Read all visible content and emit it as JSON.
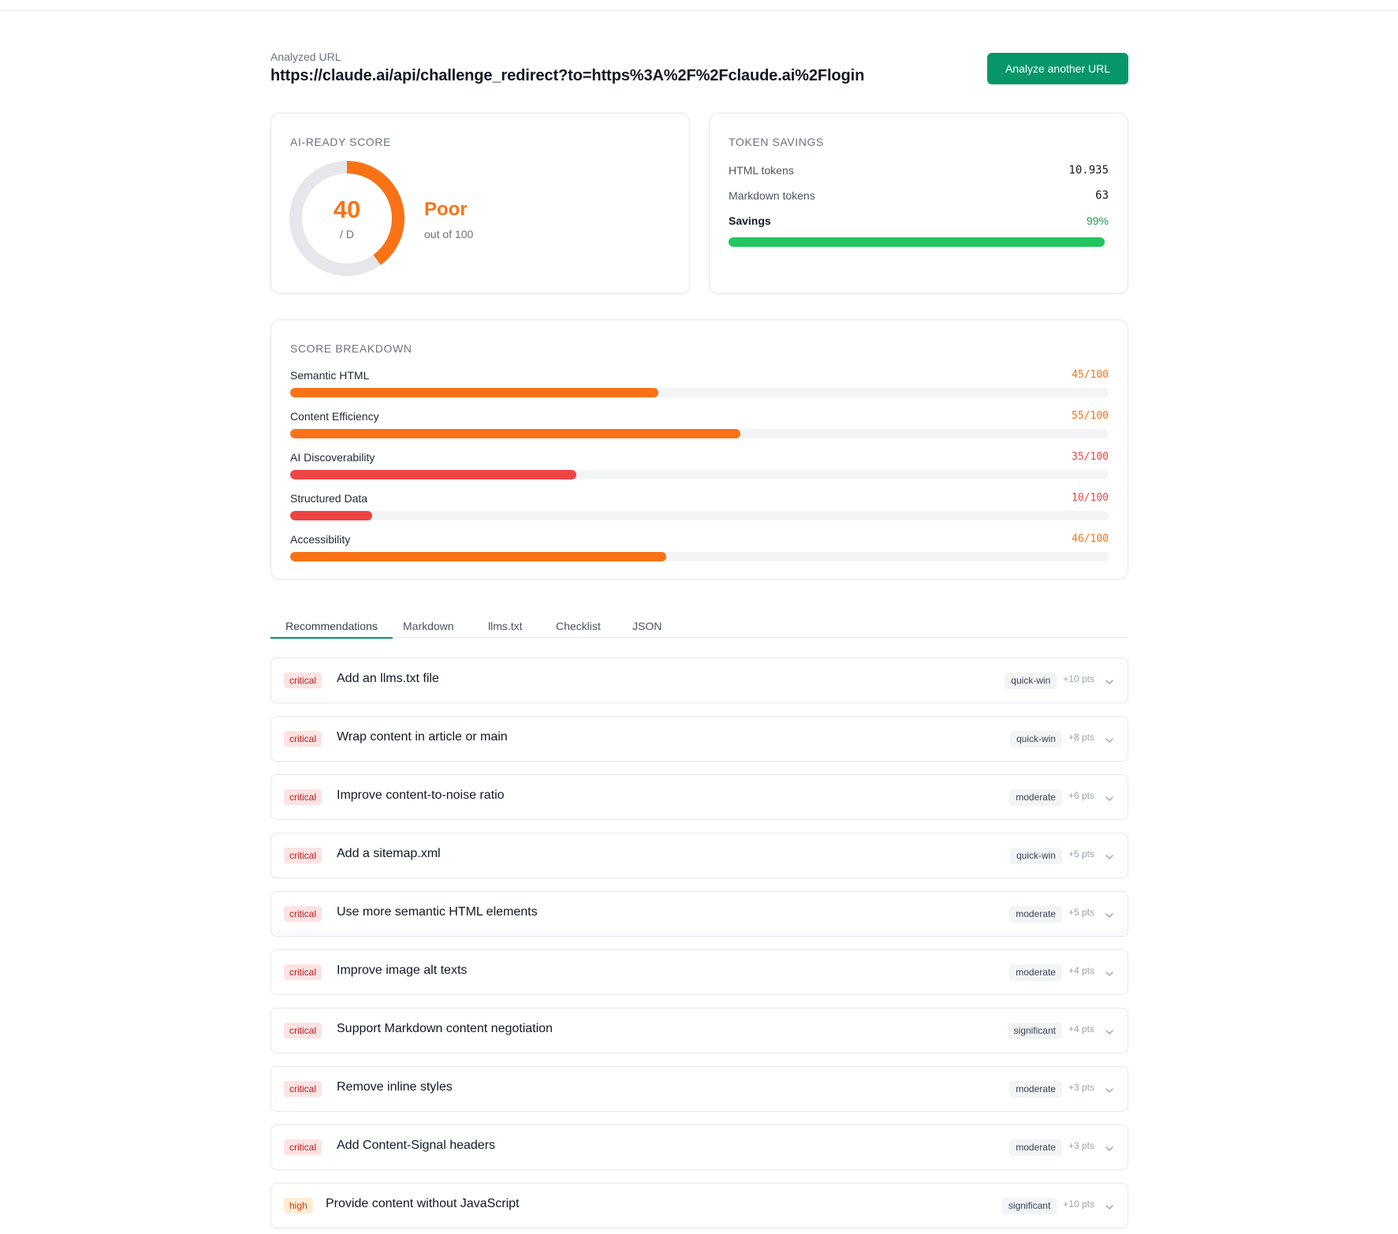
{
  "header": {
    "label": "Analyzed URL",
    "url": "https://claude.ai/api/challenge_redirect?to=https%3A%2F%2Fclaude.ai%2Flogin",
    "analyze_button": "Analyze another URL"
  },
  "score_card": {
    "title": "AI-READY SCORE",
    "score": "40",
    "grade": "/ D",
    "rating": "Poor",
    "subtitle": "out of 100",
    "score_value": 40,
    "max": 100,
    "color": "#f97316"
  },
  "token_savings": {
    "title": "TOKEN SAVINGS",
    "rows": [
      {
        "label": "HTML tokens",
        "value": "10.935"
      },
      {
        "label": "Markdown tokens",
        "value": "63"
      },
      {
        "label": "Savings",
        "value": "99%"
      }
    ],
    "savings_percent": 99,
    "bar_color": "#22c55e"
  },
  "breakdown": {
    "title": "SCORE BREAKDOWN",
    "items": [
      {
        "name": "Semantic HTML",
        "score": "45/100",
        "value": 45,
        "color": "#f97316"
      },
      {
        "name": "Content Efficiency",
        "score": "55/100",
        "value": 55,
        "color": "#f97316"
      },
      {
        "name": "AI Discoverability",
        "score": "35/100",
        "value": 35,
        "color": "#ef4444"
      },
      {
        "name": "Structured Data",
        "score": "10/100",
        "value": 10,
        "color": "#ef4444"
      },
      {
        "name": "Accessibility",
        "score": "46/100",
        "value": 46,
        "color": "#f97316"
      }
    ]
  },
  "tabs": [
    {
      "label": "Recommendations",
      "active": true
    },
    {
      "label": "Markdown"
    },
    {
      "label": "llms.txt"
    },
    {
      "label": "Checklist"
    },
    {
      "label": "JSON"
    }
  ],
  "recommendations": [
    {
      "priority": "critical",
      "title": "Add an llms.txt file",
      "effort": "quick-win",
      "points": "+10 pts"
    },
    {
      "priority": "critical",
      "title": "Wrap content in article or main",
      "effort": "quick-win",
      "points": "+8 pts"
    },
    {
      "priority": "critical",
      "title": "Improve content-to-noise ratio",
      "effort": "moderate",
      "points": "+6 pts"
    },
    {
      "priority": "critical",
      "title": "Add a sitemap.xml",
      "effort": "quick-win",
      "points": "+5 pts"
    },
    {
      "priority": "critical",
      "title": "Use more semantic HTML elements",
      "effort": "moderate",
      "points": "+5 pts"
    },
    {
      "priority": "critical",
      "title": "Improve image alt texts",
      "effort": "moderate",
      "points": "+4 pts"
    },
    {
      "priority": "critical",
      "title": "Support Markdown content negotiation",
      "effort": "significant",
      "points": "+4 pts"
    },
    {
      "priority": "critical",
      "title": "Remove inline styles",
      "effort": "moderate",
      "points": "+3 pts"
    },
    {
      "priority": "critical",
      "title": "Add Content-Signal headers",
      "effort": "moderate",
      "points": "+3 pts"
    },
    {
      "priority": "high",
      "title": "Provide content without JavaScript",
      "effort": "significant",
      "points": "+10 pts"
    }
  ],
  "colors": {
    "accent": "#079669",
    "orange": "#f97316",
    "red": "#ef4444",
    "green": "#22c55e"
  }
}
